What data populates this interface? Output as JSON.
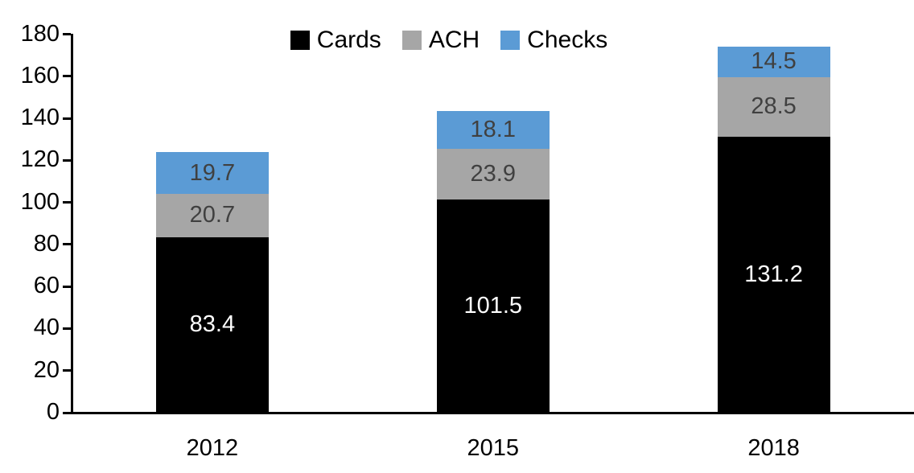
{
  "chart_data": {
    "type": "bar",
    "stacked": true,
    "title": "",
    "xlabel": "",
    "ylabel": "",
    "categories": [
      "2012",
      "2015",
      "2018"
    ],
    "series": [
      {
        "name": "Cards",
        "color": "#000000",
        "label_color": "#ffffff",
        "values": [
          83.4,
          101.5,
          131.2
        ]
      },
      {
        "name": "ACH",
        "color": "#a6a6a6",
        "label_color": "#404040",
        "values": [
          20.7,
          23.9,
          28.5
        ]
      },
      {
        "name": "Checks",
        "color": "#5b9bd5",
        "label_color": "#404040",
        "values": [
          19.7,
          18.1,
          14.5
        ]
      }
    ],
    "ylim": [
      0,
      180
    ],
    "ytick_step": 20,
    "yticks": [
      0,
      20,
      40,
      60,
      80,
      100,
      120,
      140,
      160,
      180
    ],
    "legend_position": "top-center",
    "legend_entries": [
      "Cards",
      "ACH",
      "Checks"
    ],
    "grid": false,
    "data_labels": "inside-center",
    "axis_color": "#000000",
    "text_color": "#000000"
  }
}
